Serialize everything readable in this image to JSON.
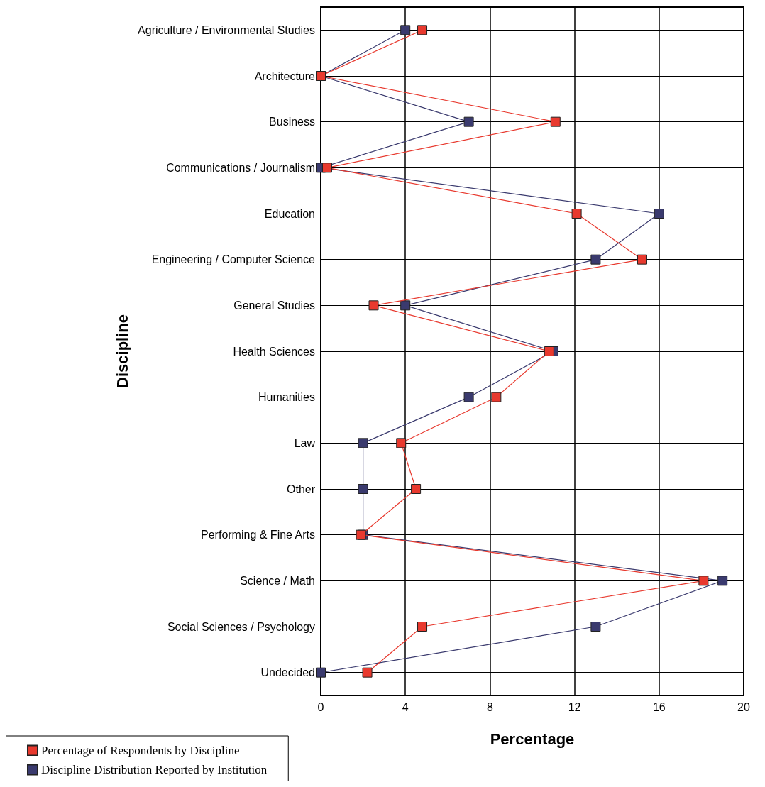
{
  "chart_data": {
    "type": "line",
    "orientation": "horizontal",
    "xlabel": "Percentage",
    "ylabel": "Discipline",
    "categories": [
      "Agriculture / Environmental Studies",
      "Architecture",
      "Business",
      "Communications / Journalism",
      "Education",
      "Engineering / Computer Science",
      "General Studies",
      "Health Sciences",
      "Humanities",
      "Law",
      "Other",
      "Performing & Fine Arts",
      "Science / Math",
      "Social Sciences / Psychology",
      "Undecided"
    ],
    "series": [
      {
        "name": "Percentage of Respondents by Discipline",
        "color": "#e8392e",
        "values": [
          4.8,
          0,
          11.1,
          0.3,
          12.1,
          15.2,
          2.5,
          10.8,
          8.3,
          3.8,
          4.5,
          1.9,
          18.1,
          4.8,
          2.2
        ]
      },
      {
        "name": "Discipline Distribution Reported by Institution",
        "color": "#3a3a6e",
        "values": [
          4,
          0,
          7,
          0,
          16,
          13,
          4,
          11,
          7,
          2,
          2,
          2,
          19,
          13,
          0
        ]
      }
    ],
    "xlim": [
      0,
      20
    ],
    "xticks": [
      0,
      4,
      8,
      12,
      16,
      20
    ],
    "grid": true,
    "legend": "bottom left",
    "marker": "square",
    "line_style": "solid"
  }
}
